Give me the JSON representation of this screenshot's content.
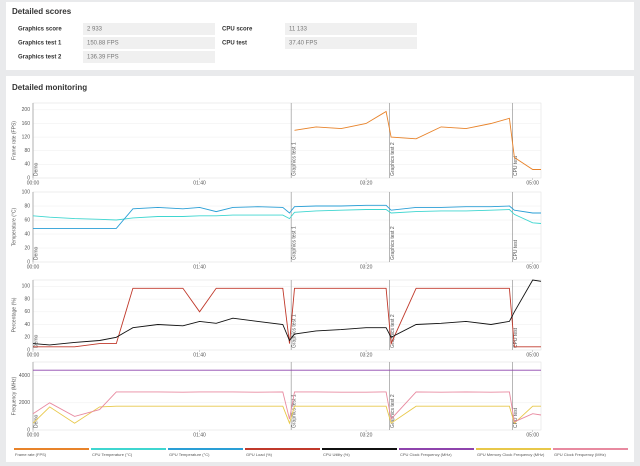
{
  "scores": {
    "title": "Detailed scores",
    "left": [
      [
        "Graphics score",
        "2 933"
      ],
      [
        "Graphics test 1",
        "150.88 FPS"
      ],
      [
        "Graphics test 2",
        "136.39 FPS"
      ]
    ],
    "right": [
      [
        "CPU score",
        "11 133"
      ],
      [
        "CPU test",
        "37.40 FPS"
      ]
    ]
  },
  "monitoring": {
    "title": "Detailed monitoring",
    "x": [
      0,
      10,
      25,
      40,
      50,
      60,
      75,
      90,
      100,
      110,
      120,
      135,
      150,
      154,
      157,
      170,
      185,
      200,
      212,
      215,
      230,
      245,
      260,
      275,
      286,
      289,
      300,
      305
    ],
    "xlim": [
      0,
      305
    ],
    "xticks": [
      {
        "value": 0,
        "label": "00:00"
      },
      {
        "value": 100,
        "label": "01:40"
      },
      {
        "value": 200,
        "label": "03:20"
      },
      {
        "value": 300,
        "label": "05:00"
      }
    ],
    "sections": [
      {
        "label": "Demo",
        "start": 0
      },
      {
        "label": "Graphics test 1",
        "start": 155
      },
      {
        "label": "Graphics test 2",
        "start": 214
      },
      {
        "label": "CPU test",
        "start": 288
      }
    ],
    "charts": [
      {
        "type": "line",
        "ylabel": "Frame rate (FPS)",
        "ylim": [
          0,
          220
        ],
        "yticks": [
          0,
          40,
          80,
          120,
          160,
          200
        ],
        "series": [
          {
            "name": "Frame rate (FPS)",
            "color": "#e8832a",
            "values": [
              null,
              null,
              null,
              null,
              null,
              null,
              null,
              null,
              null,
              null,
              null,
              null,
              null,
              null,
              140,
              150,
              145,
              160,
              195,
              120,
              115,
              150,
              145,
              160,
              175,
              60,
              25,
              25
            ]
          }
        ]
      },
      {
        "type": "line",
        "ylabel": "Temperature (°C)",
        "ylim": [
          0,
          100
        ],
        "yticks": [
          0,
          20,
          40,
          60,
          80,
          100
        ],
        "series": [
          {
            "name": "CPU Temperature (°C)",
            "color": "#3fd6d0",
            "values": [
              66,
              64,
              62,
              61,
              60,
              63,
              65,
              65,
              66,
              66,
              67,
              67,
              67,
              62,
              71,
              73,
              74,
              75,
              75,
              70,
              72,
              73,
              73,
              74,
              75,
              68,
              56,
              55
            ]
          },
          {
            "name": "GPU Temperature (°C)",
            "color": "#2a9fd6",
            "values": [
              48,
              48,
              48,
              48,
              48,
              76,
              78,
              76,
              78,
              72,
              78,
              79,
              78,
              70,
              79,
              80,
              80,
              81,
              81,
              74,
              78,
              78,
              79,
              79,
              80,
              74,
              70,
              70
            ]
          }
        ]
      },
      {
        "type": "line",
        "ylabel": "Percentage (%)",
        "ylim": [
          0,
          110
        ],
        "yticks": [
          0,
          20,
          40,
          60,
          80,
          100
        ],
        "series": [
          {
            "name": "GPU Load (%)",
            "color": "#c0392b",
            "values": [
              5,
              5,
              5,
              10,
              10,
              97,
              97,
              97,
              60,
              97,
              97,
              97,
              97,
              10,
              97,
              97,
              97,
              97,
              97,
              10,
              97,
              97,
              97,
              97,
              97,
              5,
              5,
              5
            ]
          },
          {
            "name": "CPU Utility (%)",
            "color": "#111111",
            "values": [
              10,
              8,
              12,
              15,
              20,
              35,
              40,
              38,
              45,
              42,
              50,
              45,
              40,
              15,
              25,
              30,
              32,
              35,
              35,
              20,
              40,
              42,
              45,
              40,
              45,
              60,
              110,
              108
            ]
          }
        ]
      },
      {
        "type": "line",
        "ylabel": "Frequency (MHz)",
        "ylim": [
          0,
          5000
        ],
        "yticks": [
          0,
          2000,
          4000
        ],
        "series": [
          {
            "name": "CPU Clock Frequency (MHz)",
            "color": "#8e44ad",
            "values": [
              4400,
              4400,
              4400,
              4400,
              4400,
              4400,
              4400,
              4400,
              4400,
              4400,
              4400,
              4400,
              4400,
              4400,
              4400,
              4400,
              4400,
              4400,
              4400,
              4400,
              4400,
              4400,
              4400,
              4400,
              4400,
              4400,
              4400,
              4400
            ]
          },
          {
            "name": "GPU Memory Clock Frequency (MHz)",
            "color": "#e8c84a",
            "values": [
              500,
              1700,
              500,
              1700,
              1750,
              1750,
              1750,
              1750,
              1750,
              1750,
              1750,
              1750,
              1750,
              500,
              1750,
              1750,
              1750,
              1750,
              1750,
              500,
              1750,
              1750,
              1750,
              1750,
              1750,
              500,
              1750,
              1750
            ]
          },
          {
            "name": "GPU Clock Frequency (MHz)",
            "color": "#e88aa0",
            "values": [
              1200,
              2000,
              1000,
              1500,
              2800,
              2800,
              2800,
              2780,
              2800,
              2800,
              2800,
              2780,
              2800,
              800,
              2800,
              2800,
              2780,
              2780,
              2800,
              800,
              2800,
              2780,
              2800,
              2780,
              2800,
              600,
              1200,
              1100
            ]
          }
        ]
      }
    ]
  }
}
